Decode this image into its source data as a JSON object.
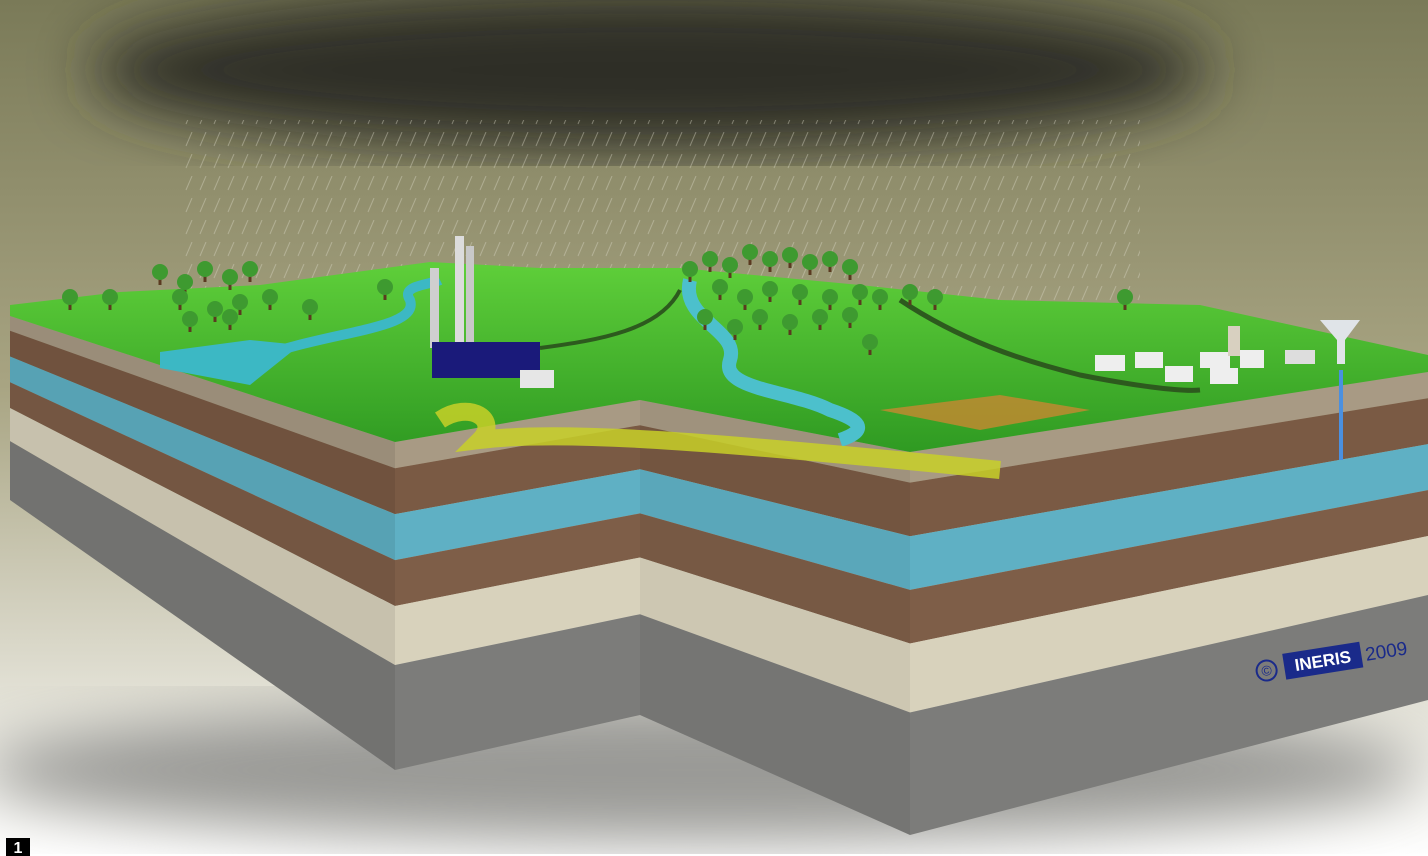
{
  "image": {
    "badge": "1",
    "watermark": {
      "symbol": "©",
      "name": "INERIS",
      "year": "2009"
    }
  }
}
